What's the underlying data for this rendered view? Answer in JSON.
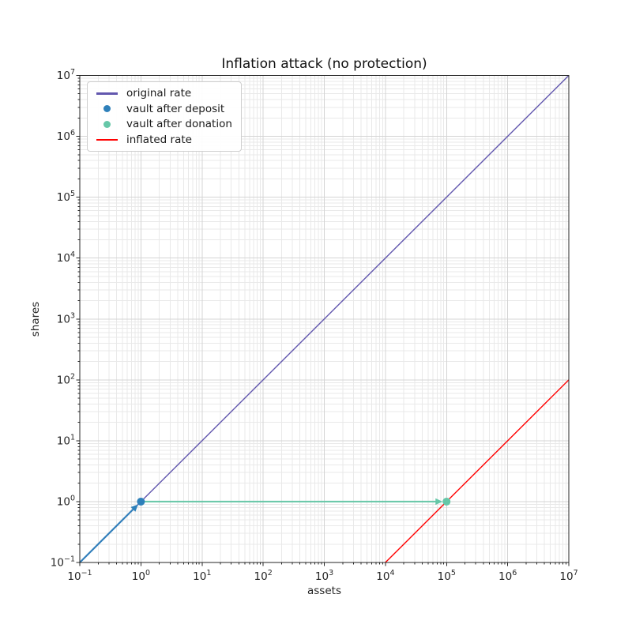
{
  "figure": {
    "background": "#ffffff"
  },
  "chart_data": {
    "type": "line",
    "title": "Inflation attack (no protection)",
    "xlabel": "assets",
    "ylabel": "shares",
    "xscale": "log",
    "yscale": "log",
    "xlim": [
      0.1,
      10000000
    ],
    "ylim": [
      0.1,
      10000000
    ],
    "x_tick_labels": [
      "10^-1",
      "10^0",
      "10^1",
      "10^2",
      "10^3",
      "10^4",
      "10^5",
      "10^6",
      "10^7"
    ],
    "y_tick_labels": [
      "10^-1",
      "10^0",
      "10^1",
      "10^2",
      "10^3",
      "10^4",
      "10^5",
      "10^6",
      "10^7"
    ],
    "grid": "major and minor, light gray",
    "legend_position": "upper left",
    "series": [
      {
        "name": "original rate",
        "type": "line",
        "color": "#6257ae",
        "linewidth": 1.4,
        "points": [
          [
            0.1,
            0.1
          ],
          [
            10000000,
            10000000
          ]
        ]
      },
      {
        "name": "vault after deposit",
        "type": "scatter",
        "color": "#2e80ba",
        "markersize": 10,
        "points": [
          [
            1,
            1
          ]
        ]
      },
      {
        "name": "vault after donation",
        "type": "scatter",
        "color": "#66c7a8",
        "markersize": 10,
        "points": [
          [
            100000,
            1
          ]
        ]
      },
      {
        "name": "inflated rate",
        "type": "line",
        "color": "#ff0000",
        "linewidth": 1.4,
        "points": [
          [
            10000,
            0.1
          ],
          [
            10000000,
            100
          ]
        ]
      }
    ],
    "arrows": [
      {
        "name": "deposit-step",
        "color": "#2e80ba",
        "from": [
          0.1,
          0.1
        ],
        "to": [
          1,
          1
        ]
      },
      {
        "name": "donation-step",
        "color": "#66c7a8",
        "from": [
          1,
          1
        ],
        "to": [
          100000,
          1
        ]
      }
    ]
  }
}
